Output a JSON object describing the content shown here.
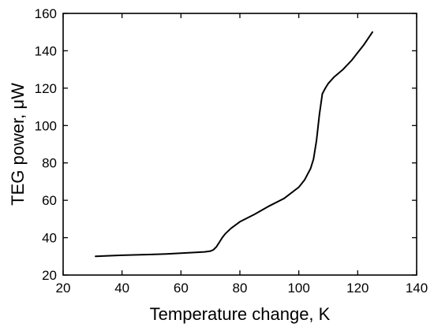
{
  "chart_data": {
    "type": "line",
    "title": "",
    "xlabel": "Temperature change, K",
    "ylabel": "TEG power, μW",
    "xlim": [
      20,
      140
    ],
    "ylim": [
      20,
      160
    ],
    "x_ticks": [
      20,
      40,
      60,
      80,
      100,
      120,
      140
    ],
    "y_ticks": [
      20,
      40,
      60,
      80,
      100,
      120,
      140,
      160
    ],
    "x_tick_labels": [
      "20",
      "40",
      "60",
      "80",
      "100",
      "120",
      "140"
    ],
    "y_tick_labels": [
      "20",
      "40",
      "60",
      "80",
      "100",
      "120",
      "140",
      "160"
    ],
    "grid": false,
    "legend": "none",
    "colors": {
      "line": "#000000",
      "axes": "#000000",
      "background": "#ffffff"
    },
    "series": [
      {
        "x": [
          31,
          35,
          40,
          45,
          50,
          55,
          60,
          65,
          68,
          70,
          71,
          72,
          73,
          74,
          75,
          77,
          80,
          85,
          90,
          95,
          100,
          102,
          104,
          105,
          106,
          107,
          108,
          109,
          110,
          112,
          115,
          118,
          120,
          122,
          125
        ],
        "y": [
          30,
          30.3,
          30.6,
          30.8,
          31,
          31.3,
          31.7,
          32.1,
          32.4,
          32.8,
          33.5,
          35,
          37.5,
          40,
          42,
          45,
          48.5,
          52.5,
          57,
          61,
          67,
          71,
          77,
          82,
          92,
          106,
          117,
          120,
          122.5,
          126,
          130,
          135,
          139,
          143,
          150
        ]
      }
    ]
  }
}
